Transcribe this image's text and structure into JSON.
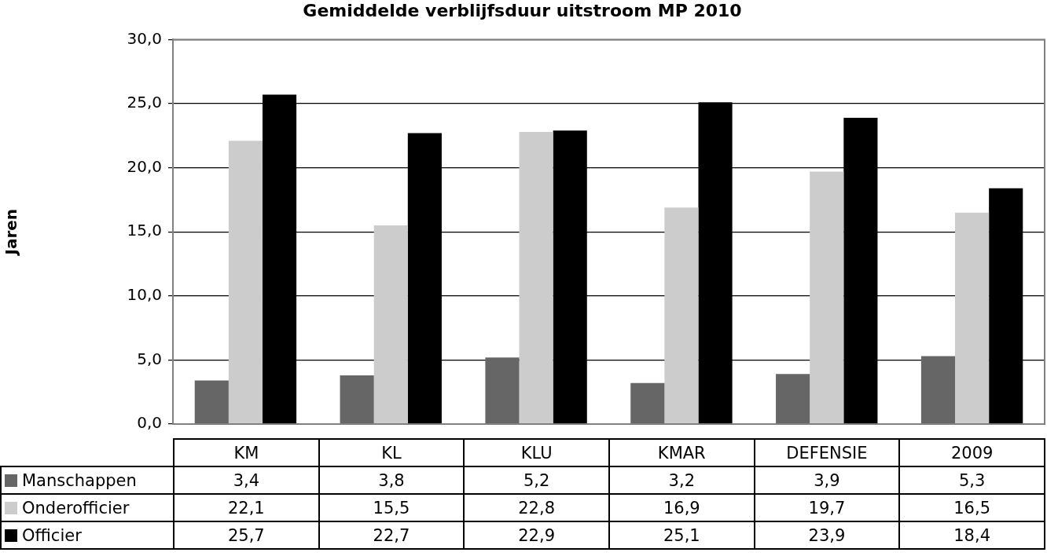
{
  "chart_data": {
    "type": "bar",
    "title": "Gemiddelde verblijfsduur uitstroom MP 2010",
    "y_label": "Jaren",
    "categories": [
      "KM",
      "KL",
      "KLU",
      "KMAR",
      "DEFENSIE",
      "2009"
    ],
    "series": [
      {
        "name": "Manschappen",
        "color": "#666666",
        "values": [
          3.4,
          3.8,
          5.2,
          3.2,
          3.9,
          5.3
        ],
        "value_labels": [
          "3,4",
          "3,8",
          "5,2",
          "3,2",
          "3,9",
          "5,3"
        ]
      },
      {
        "name": "Onderofficier",
        "color": "#cccccc",
        "values": [
          22.1,
          15.5,
          22.8,
          16.9,
          19.7,
          16.5
        ],
        "value_labels": [
          "22,1",
          "15,5",
          "22,8",
          "16,9",
          "19,7",
          "16,5"
        ]
      },
      {
        "name": "Officier",
        "color": "#000000",
        "values": [
          25.7,
          22.7,
          22.9,
          25.1,
          23.9,
          18.4
        ],
        "value_labels": [
          "25,7",
          "22,7",
          "22,9",
          "25,1",
          "23,9",
          "18,4"
        ]
      }
    ],
    "ylim": [
      0,
      30
    ],
    "yticks": [
      {
        "value": 0,
        "label": "0,0"
      },
      {
        "value": 5,
        "label": "5,0"
      },
      {
        "value": 10,
        "label": "10,0"
      },
      {
        "value": 15,
        "label": "15,0"
      },
      {
        "value": 20,
        "label": "20,0"
      },
      {
        "value": 25,
        "label": "25,0"
      },
      {
        "value": 30,
        "label": "30,0"
      }
    ],
    "grid": true
  }
}
